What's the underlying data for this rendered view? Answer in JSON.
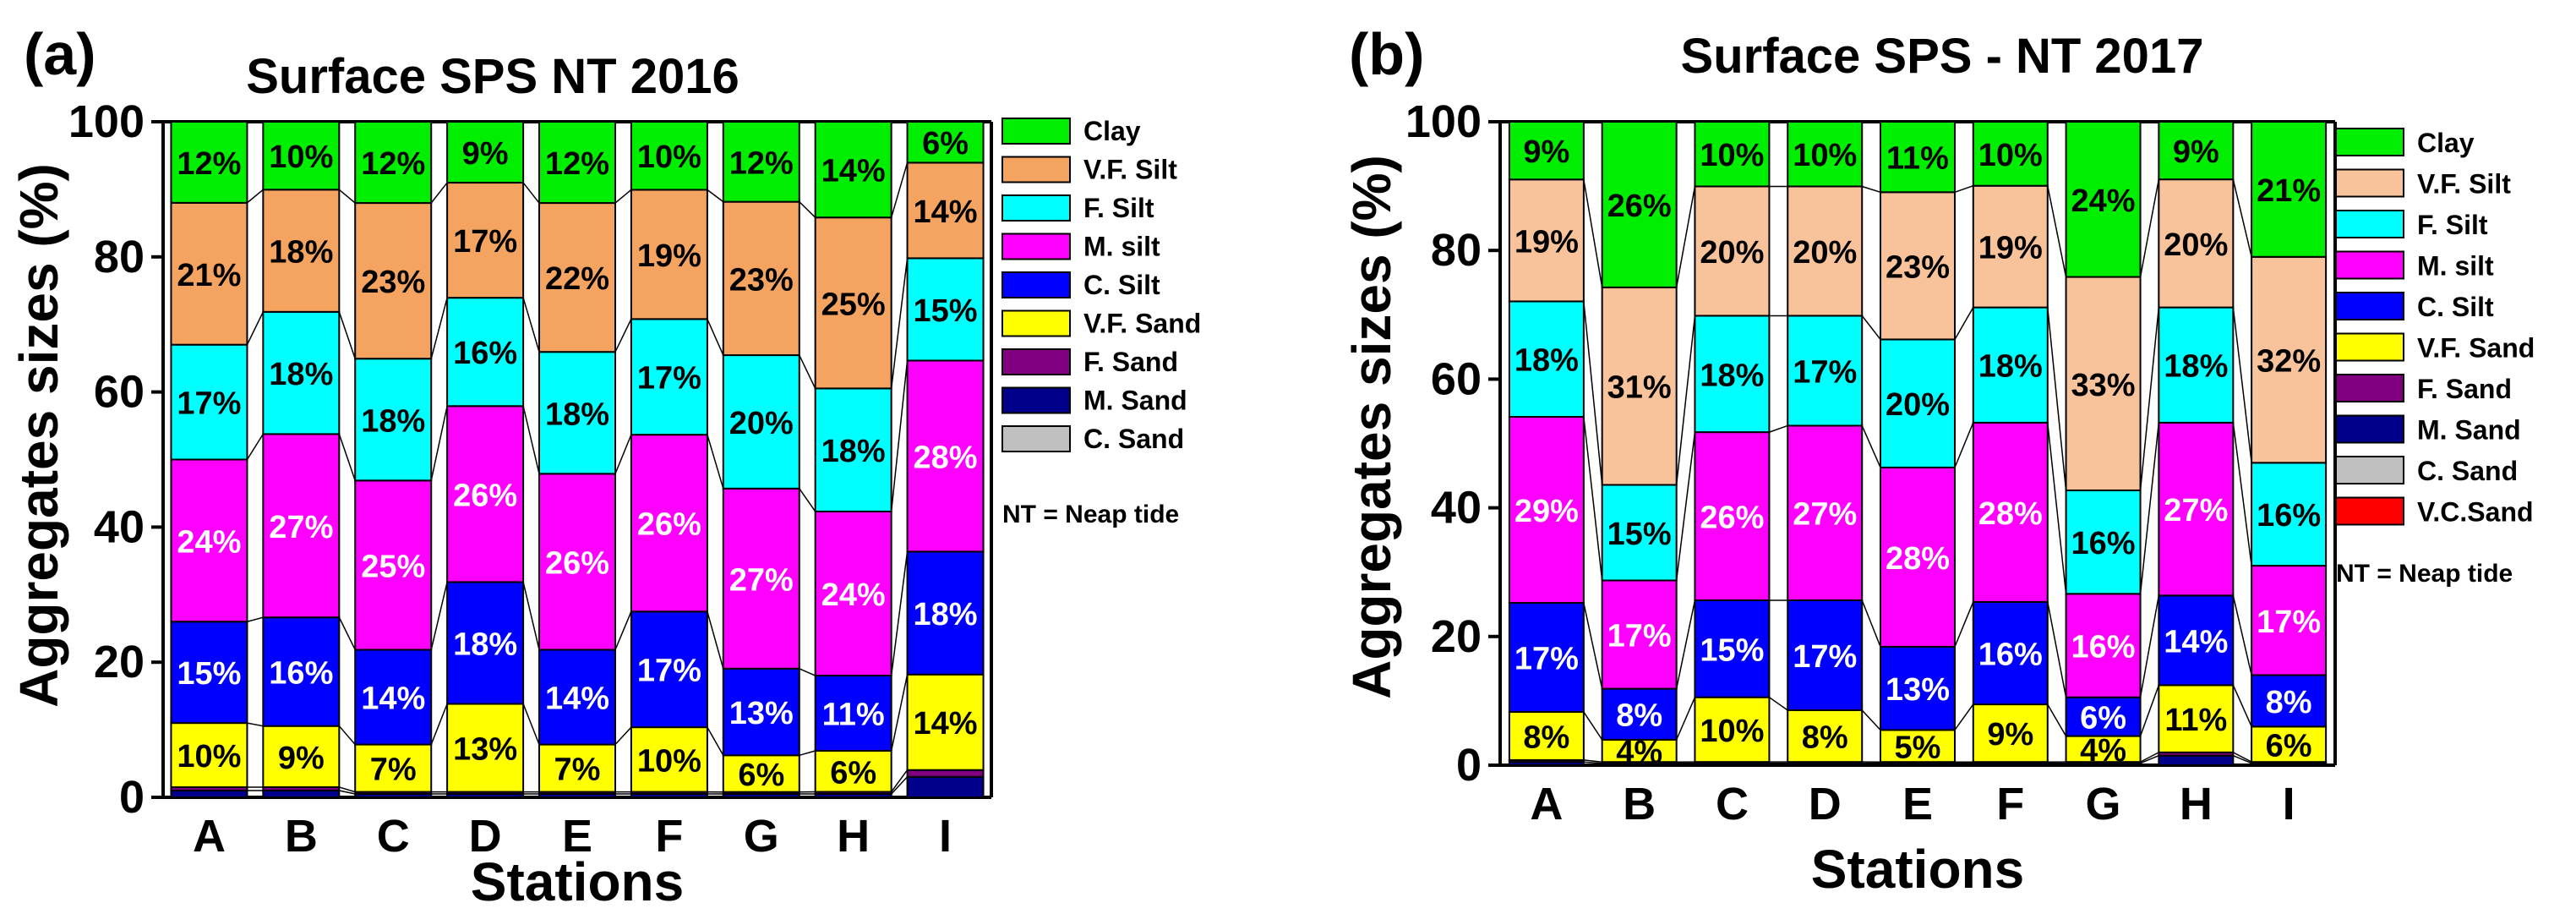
{
  "figure": {
    "panels": [
      {
        "label": "(a)",
        "title": "Surface SPS NT 2016",
        "note": "NT = Neap tide"
      },
      {
        "label": "(b)",
        "title": "Surface SPS - NT 2017",
        "note": "NT = Neap tide"
      }
    ]
  },
  "chart_data": [
    {
      "type": "bar",
      "stacked": true,
      "panel": "(a)",
      "title": "Surface SPS NT 2016",
      "xlabel": "Stations",
      "ylabel": "Aggregates sizes (%)",
      "ylim": [
        0,
        100
      ],
      "yticks": [
        "0",
        "20",
        "40",
        "60",
        "80",
        "100"
      ],
      "categories": [
        "A",
        "B",
        "C",
        "D",
        "E",
        "F",
        "G",
        "H",
        "I"
      ],
      "legend_position": "right",
      "series": [
        {
          "name": "C. Sand",
          "color": "#c0c0c0",
          "values": [
            0,
            0,
            0,
            0,
            0,
            0,
            0,
            0,
            0
          ],
          "labels": [
            "",
            "",
            "",
            "",
            "",
            "",
            "",
            "",
            ""
          ]
        },
        {
          "name": "M. Sand",
          "color": "#00008b",
          "values": [
            1,
            1,
            0.5,
            0.5,
            0.5,
            0.5,
            0.5,
            0.5,
            3
          ],
          "labels": [
            "",
            "",
            "",
            "",
            "",
            "",
            "",
            "",
            ""
          ]
        },
        {
          "name": "F. Sand",
          "color": "#800080",
          "values": [
            0.5,
            0.5,
            0.3,
            0.3,
            0.3,
            0.3,
            0.3,
            0.3,
            1
          ],
          "labels": [
            "",
            "",
            "",
            "",
            "",
            "",
            "",
            "",
            ""
          ]
        },
        {
          "name": "V.F. Sand",
          "color": "#ffff00",
          "values": [
            9.5,
            9,
            7,
            13,
            7,
            9.5,
            5.5,
            6,
            14
          ],
          "labels": [
            "10%",
            "9%",
            "7%",
            "13%",
            "7%",
            "10%",
            "6%",
            "6%",
            "14%"
          ]
        },
        {
          "name": "C. Silt",
          "color": "#0000ff",
          "values": [
            15,
            16,
            14,
            18,
            14,
            17,
            13,
            11,
            18
          ],
          "labels": [
            "15%",
            "16%",
            "14%",
            "18%",
            "14%",
            "17%",
            "13%",
            "11%",
            "18%"
          ]
        },
        {
          "name": "M. silt",
          "color": "#ff00ff",
          "values": [
            24,
            27,
            25,
            26,
            26,
            26,
            27,
            24,
            28
          ],
          "labels": [
            "24%",
            "27%",
            "25%",
            "26%",
            "26%",
            "26%",
            "27%",
            "24%",
            "28%"
          ]
        },
        {
          "name": "F. Silt",
          "color": "#00ffff",
          "values": [
            17,
            18,
            18,
            16,
            18,
            17,
            20,
            18,
            15
          ],
          "labels": [
            "17%",
            "18%",
            "18%",
            "16%",
            "18%",
            "17%",
            "20%",
            "18%",
            "15%"
          ]
        },
        {
          "name": "V.F. Silt",
          "color": "#f4a460",
          "values": [
            21,
            18,
            23,
            17,
            22,
            19,
            23,
            25,
            14
          ],
          "labels": [
            "21%",
            "18%",
            "23%",
            "17%",
            "22%",
            "19%",
            "23%",
            "25%",
            "14%"
          ]
        },
        {
          "name": "Clay",
          "color": "#00ee00",
          "values": [
            12,
            10,
            12,
            9,
            12,
            10,
            12,
            14,
            6
          ],
          "labels": [
            "12%",
            "10%",
            "12%",
            "9%",
            "12%",
            "10%",
            "12%",
            "14%",
            "6%"
          ]
        }
      ]
    },
    {
      "type": "bar",
      "stacked": true,
      "panel": "(b)",
      "title": "Surface SPS - NT 2017",
      "xlabel": "Stations",
      "ylabel": "Aggregates sizes (%)",
      "ylim": [
        0,
        100
      ],
      "yticks": [
        "0",
        "20",
        "40",
        "60",
        "80",
        "100"
      ],
      "categories": [
        "A",
        "B",
        "C",
        "D",
        "E",
        "F",
        "G",
        "H",
        "I"
      ],
      "legend_position": "right",
      "series": [
        {
          "name": "V.C.Sand",
          "color": "#ff0000",
          "values": [
            0,
            0,
            0,
            0,
            0,
            0,
            0,
            0,
            0
          ],
          "labels": [
            "",
            "",
            "",
            "",
            "",
            "",
            "",
            "",
            ""
          ]
        },
        {
          "name": "C. Sand",
          "color": "#c0c0c0",
          "values": [
            0,
            0,
            0,
            0,
            0,
            0,
            0,
            0,
            0
          ],
          "labels": [
            "",
            "",
            "",
            "",
            "",
            "",
            "",
            "",
            ""
          ]
        },
        {
          "name": "M. Sand",
          "color": "#00008b",
          "values": [
            0.5,
            0.3,
            0.3,
            0.3,
            0.3,
            0.3,
            0.3,
            1.5,
            0.3
          ],
          "labels": [
            "",
            "",
            "",
            "",
            "",
            "",
            "",
            "",
            ""
          ]
        },
        {
          "name": "F. Sand",
          "color": "#800080",
          "values": [
            0.3,
            0.2,
            0.2,
            0.2,
            0.2,
            0.2,
            0.2,
            0.5,
            0.2
          ],
          "labels": [
            "",
            "",
            "",
            "",
            "",
            "",
            "",
            "",
            ""
          ]
        },
        {
          "name": "V.F. Sand",
          "color": "#ffff00",
          "values": [
            7.5,
            3.5,
            10,
            8,
            5,
            9,
            4,
            10.5,
            5.5
          ],
          "labels": [
            "8%",
            "4%",
            "10%",
            "8%",
            "5%",
            "9%",
            "4%",
            "11%",
            "6%"
          ]
        },
        {
          "name": "C. Silt",
          "color": "#0000ff",
          "values": [
            17,
            8,
            15,
            17,
            13,
            16,
            6,
            14,
            8
          ],
          "labels": [
            "17%",
            "8%",
            "15%",
            "17%",
            "13%",
            "16%",
            "6%",
            "14%",
            "8%"
          ]
        },
        {
          "name": "M. silt",
          "color": "#ff00ff",
          "values": [
            29,
            17,
            26,
            27,
            28,
            28,
            16,
            27,
            17
          ],
          "labels": [
            "29%",
            "17%",
            "26%",
            "27%",
            "28%",
            "28%",
            "16%",
            "27%",
            "17%"
          ]
        },
        {
          "name": "F. Silt",
          "color": "#00ffff",
          "values": [
            18,
            15,
            18,
            17,
            20,
            18,
            16,
            18,
            16
          ],
          "labels": [
            "18%",
            "15%",
            "18%",
            "17%",
            "20%",
            "18%",
            "16%",
            "18%",
            "16%"
          ]
        },
        {
          "name": "V.F. Silt",
          "color": "#f8c39b",
          "values": [
            19,
            31,
            20,
            20,
            23,
            19,
            33,
            20,
            32
          ],
          "labels": [
            "19%",
            "31%",
            "20%",
            "20%",
            "23%",
            "19%",
            "33%",
            "20%",
            "32%"
          ]
        },
        {
          "name": "Clay",
          "color": "#00ee00",
          "values": [
            9,
            26,
            10,
            10,
            11,
            10,
            24,
            9,
            21
          ],
          "labels": [
            "9%",
            "26%",
            "10%",
            "10%",
            "11%",
            "10%",
            "24%",
            "9%",
            "21%"
          ]
        }
      ]
    }
  ]
}
